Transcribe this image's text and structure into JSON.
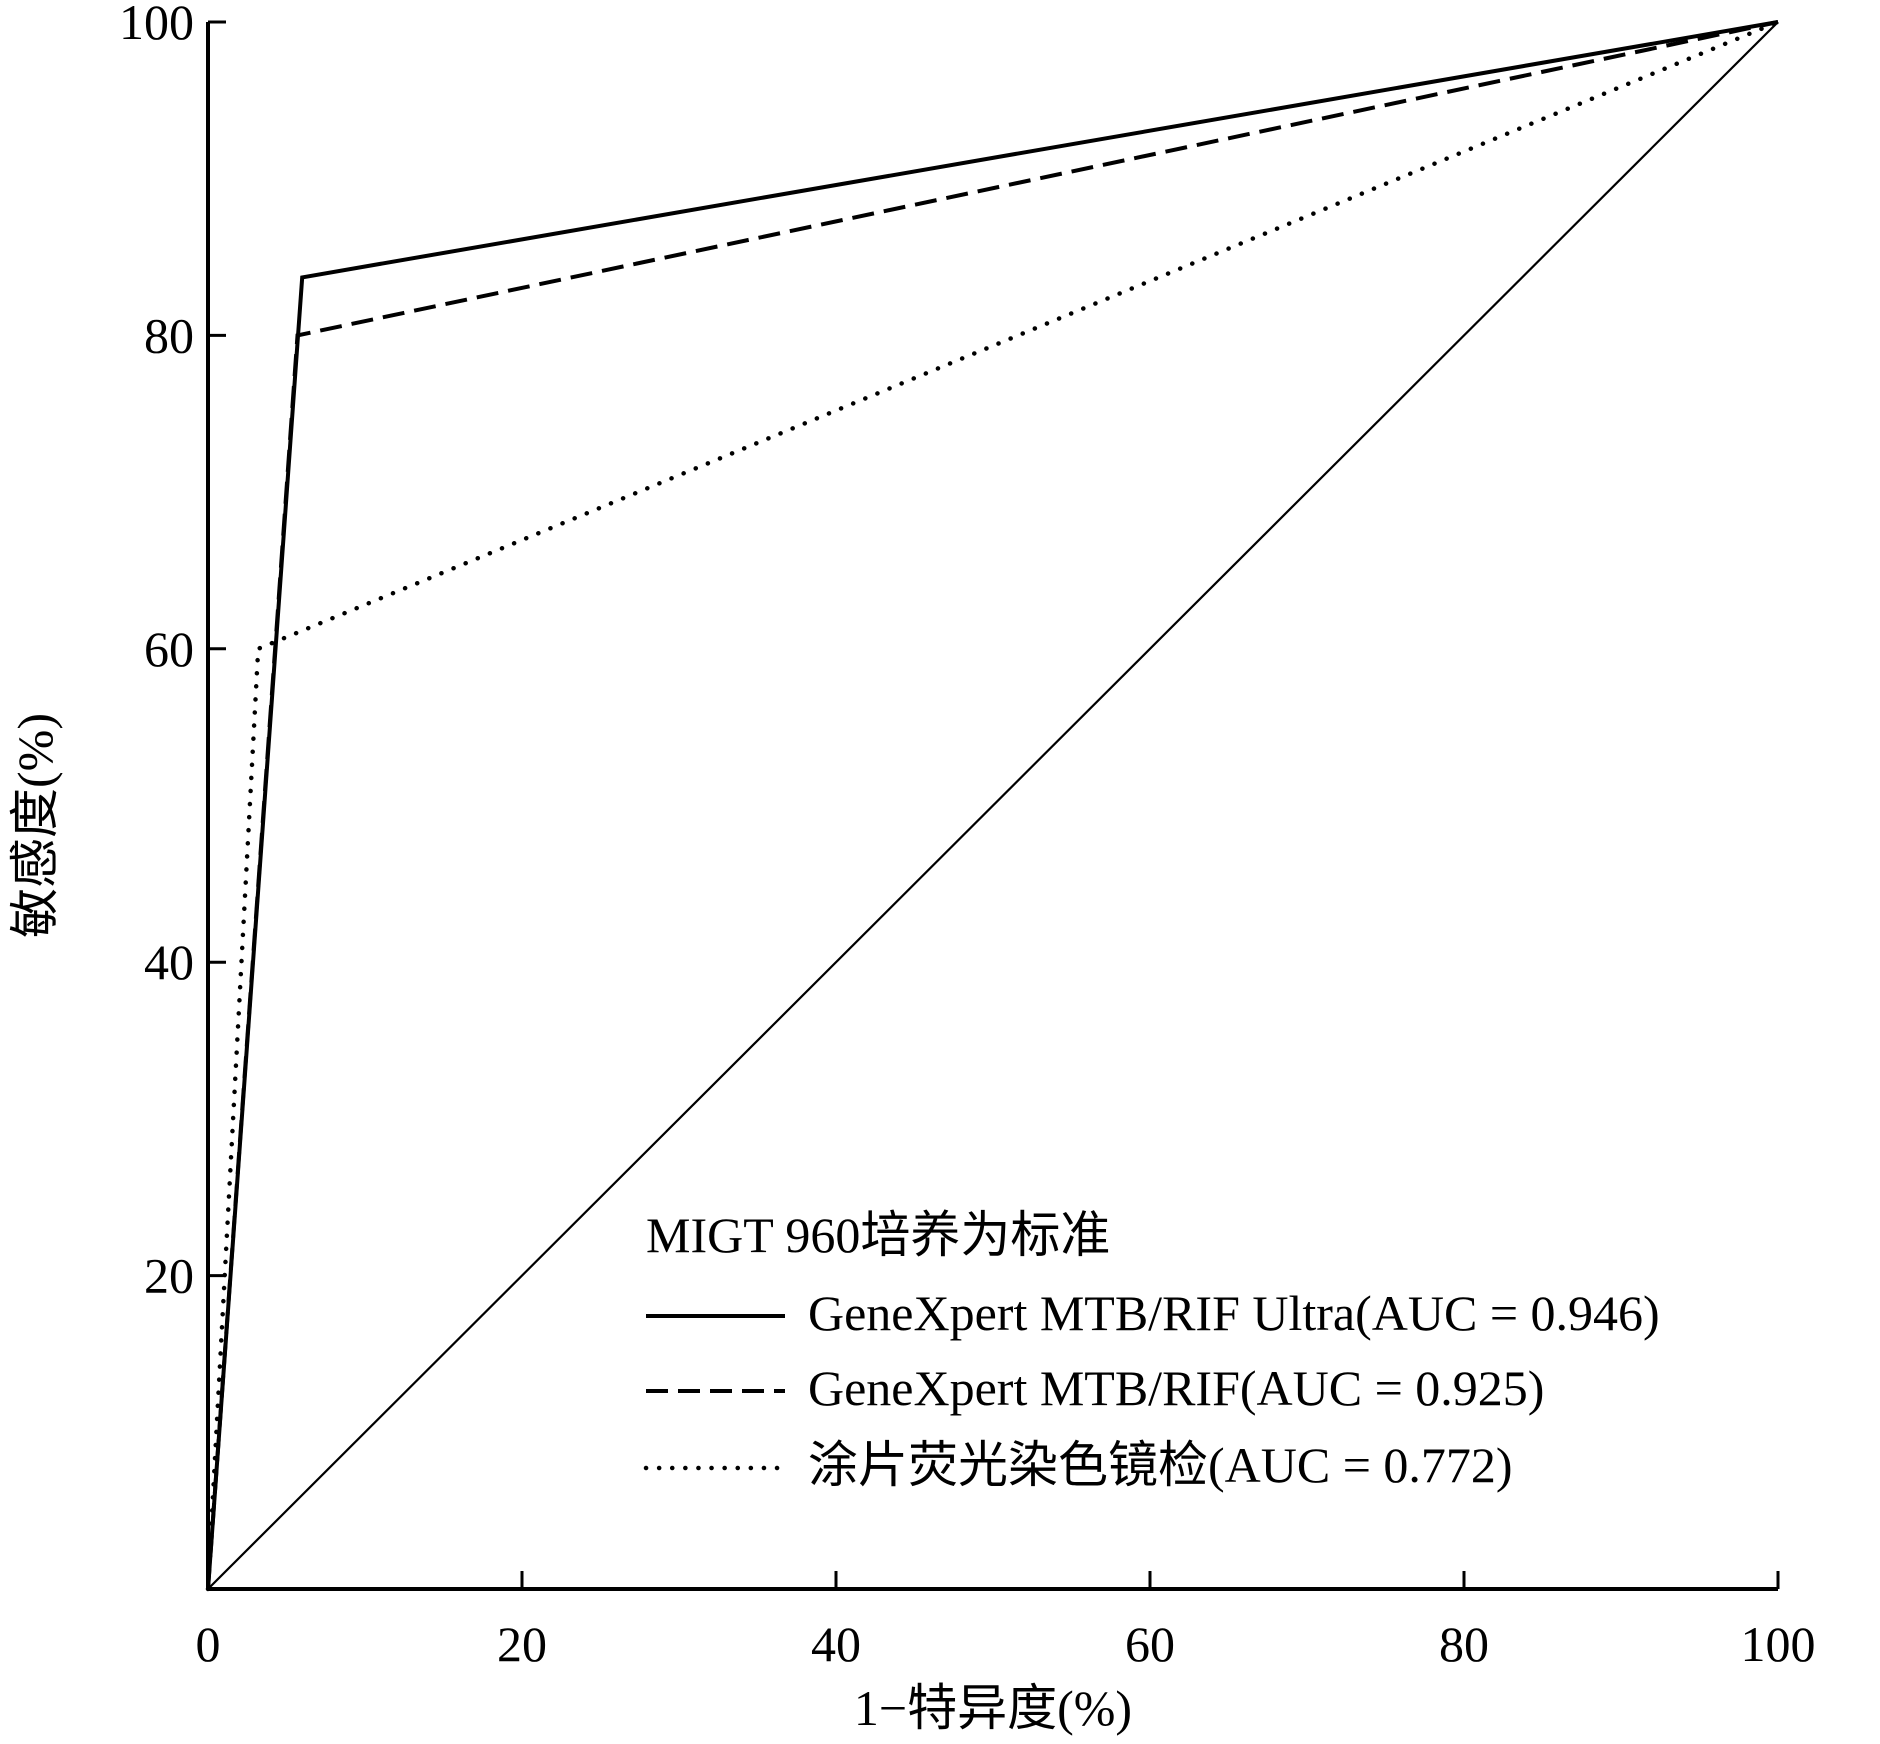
{
  "chart_data": {
    "type": "line",
    "xlabel": "1−特异度(%)",
    "ylabel": "敏感度(%)",
    "xlim": [
      0,
      100
    ],
    "ylim": [
      0,
      100
    ],
    "xticks": [
      0,
      20,
      40,
      60,
      80,
      100
    ],
    "yticks": [
      20,
      40,
      60,
      80,
      100
    ],
    "grid": false,
    "legend_title": "MIGT 960培养为标准",
    "legend_position": "bottom-right",
    "series": [
      {
        "name": "GeneXpert MTB/RIF Ultra(AUC = 0.946)",
        "style": "solid",
        "x": [
          0,
          6,
          100
        ],
        "y": [
          0,
          83.7,
          100
        ]
      },
      {
        "name": "GeneXpert MTB/RIF(AUC = 0.925)",
        "style": "dashed",
        "x": [
          0,
          5.7,
          100
        ],
        "y": [
          0,
          80,
          100
        ]
      },
      {
        "name": "涂片荧光染色镜检(AUC = 0.772)",
        "style": "dotted",
        "x": [
          0,
          3.2,
          100
        ],
        "y": [
          0,
          60,
          100
        ]
      },
      {
        "style": "thin",
        "x": [
          0,
          100
        ],
        "y": [
          0,
          100
        ]
      }
    ]
  },
  "colors": {
    "line": "#000000",
    "background": "#ffffff"
  }
}
